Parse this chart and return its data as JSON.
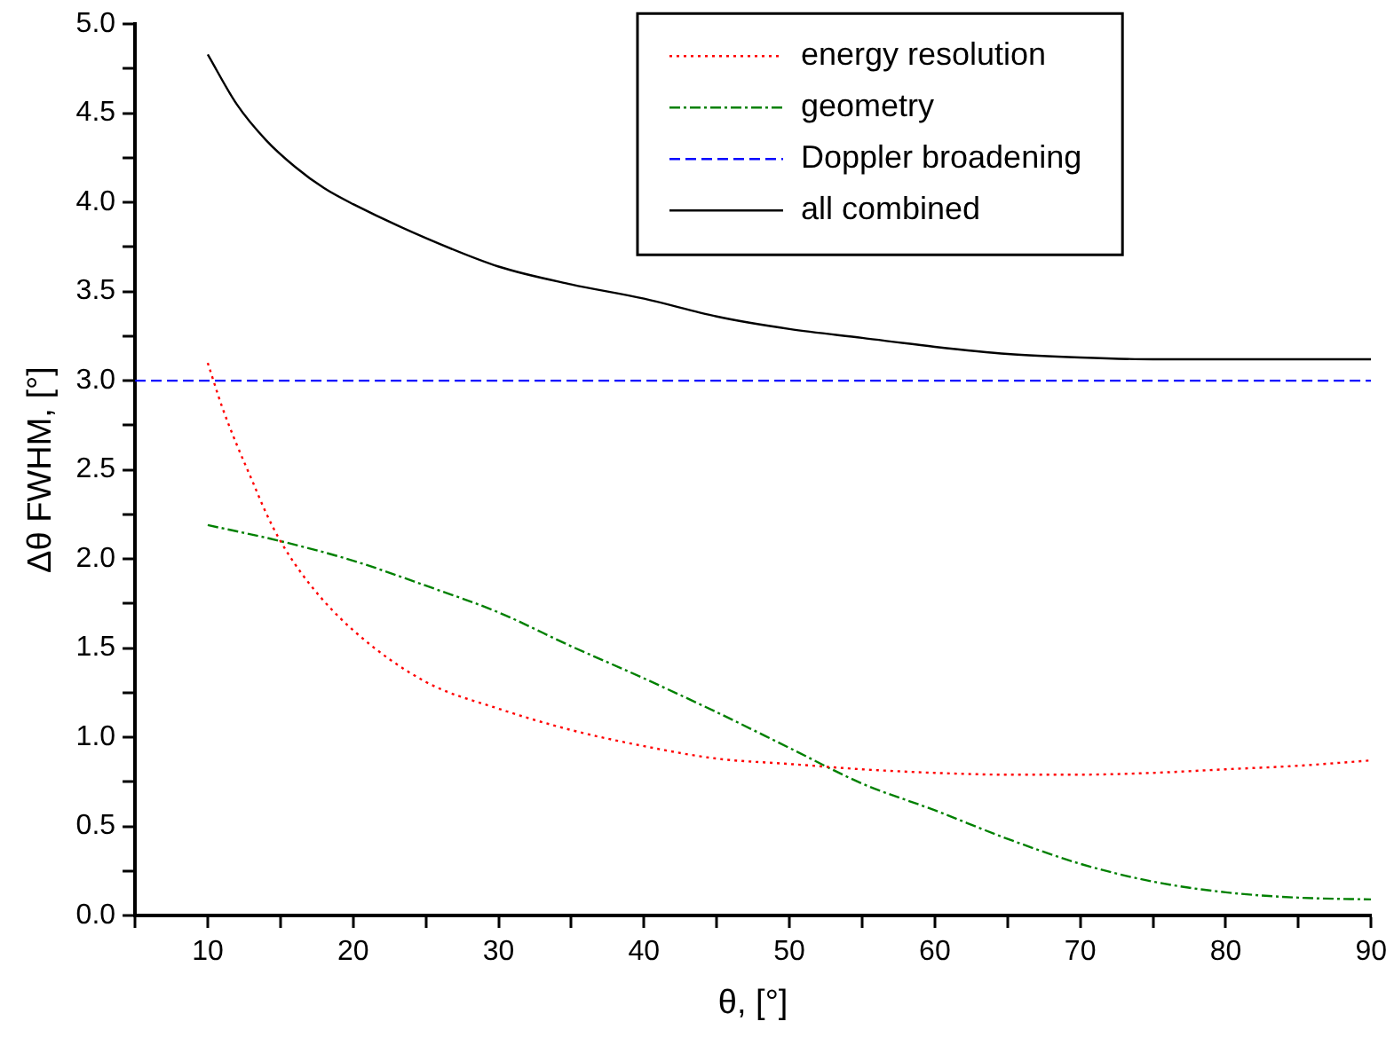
{
  "chart_data": {
    "type": "line",
    "xlabel": "θ, [°]",
    "ylabel": "Δθ FWHM, [°]",
    "xlim": [
      5,
      90
    ],
    "ylim": [
      0,
      5
    ],
    "xticks": [
      {
        "value": 5,
        "label": null
      },
      10,
      {
        "value": 15,
        "label": null
      },
      20,
      {
        "value": 25,
        "label": null
      },
      30,
      {
        "value": 35,
        "label": null
      },
      40,
      {
        "value": 45,
        "label": null
      },
      50,
      {
        "value": 55,
        "label": null
      },
      60,
      {
        "value": 65,
        "label": null
      },
      70,
      {
        "value": 75,
        "label": null
      },
      80,
      {
        "value": 85,
        "label": null
      },
      90
    ],
    "yticks": [
      {
        "value": 0,
        "label": "0.0"
      },
      {
        "value": 0.25,
        "label": null
      },
      {
        "value": 0.5,
        "label": "0.5"
      },
      {
        "value": 0.75,
        "label": null
      },
      {
        "value": 1,
        "label": "1.0"
      },
      {
        "value": 1.25,
        "label": null
      },
      {
        "value": 1.5,
        "label": "1.5"
      },
      {
        "value": 1.75,
        "label": null
      },
      {
        "value": 2,
        "label": "2.0"
      },
      {
        "value": 2.25,
        "label": null
      },
      {
        "value": 2.5,
        "label": "2.5"
      },
      {
        "value": 2.75,
        "label": null
      },
      {
        "value": 3,
        "label": "3.0"
      },
      {
        "value": 3.25,
        "label": null
      },
      {
        "value": 3.5,
        "label": "3.5"
      },
      {
        "value": 3.75,
        "label": null
      },
      {
        "value": 4,
        "label": "4.0"
      },
      {
        "value": 4.25,
        "label": null
      },
      {
        "value": 4.5,
        "label": "4.5"
      },
      {
        "value": 4.75,
        "label": null
      },
      {
        "value": 5,
        "label": "5.0"
      }
    ],
    "grid": false,
    "legend": "top right",
    "marker": "none",
    "series": [
      {
        "name": "energy resolution",
        "color": "#ff0000",
        "line_style": "dotted",
        "x": [
          10,
          11,
          12,
          13,
          14,
          15,
          17,
          20,
          25,
          30,
          35,
          40,
          45,
          50,
          55,
          60,
          65,
          70,
          75,
          80,
          85,
          90
        ],
        "values": [
          3.1,
          2.85,
          2.64,
          2.45,
          2.26,
          2.1,
          1.86,
          1.6,
          1.31,
          1.16,
          1.04,
          0.95,
          0.88,
          0.85,
          0.82,
          0.8,
          0.79,
          0.79,
          0.8,
          0.82,
          0.84,
          0.87
        ]
      },
      {
        "name": "geometry",
        "color": "#008000",
        "line_style": "dashdot",
        "x": [
          10,
          15,
          20,
          25,
          30,
          35,
          40,
          45,
          50,
          55,
          60,
          65,
          70,
          75,
          80,
          85,
          90
        ],
        "values": [
          2.19,
          2.1,
          1.99,
          1.85,
          1.7,
          1.51,
          1.33,
          1.14,
          0.94,
          0.74,
          0.59,
          0.43,
          0.29,
          0.19,
          0.13,
          0.1,
          0.09
        ]
      },
      {
        "name": "Doppler broadening",
        "color": "#0000ff",
        "line_style": "dashed",
        "x": [
          5,
          90
        ],
        "values": [
          3,
          3
        ]
      },
      {
        "name": "all combined",
        "color": "#000000",
        "line_style": "solid",
        "x": [
          10,
          12,
          14,
          16,
          18,
          20,
          25,
          30,
          35,
          40,
          45,
          50,
          55,
          60,
          65,
          70,
          75,
          80,
          85,
          90
        ],
        "values": [
          4.83,
          4.55,
          4.35,
          4.2,
          4.08,
          3.99,
          3.8,
          3.64,
          3.54,
          3.46,
          3.36,
          3.29,
          3.24,
          3.19,
          3.15,
          3.13,
          3.12,
          3.12,
          3.12,
          3.12
        ]
      }
    ]
  }
}
